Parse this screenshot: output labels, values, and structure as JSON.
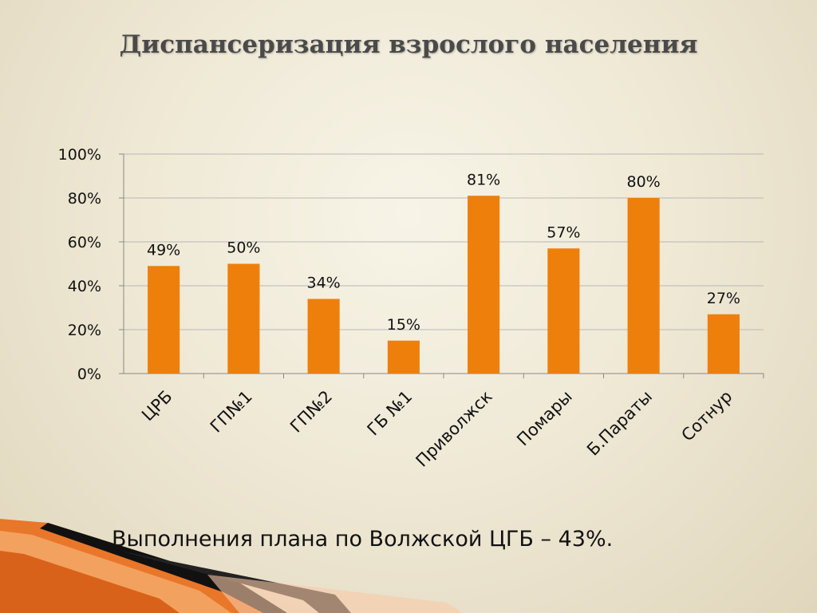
{
  "slide": {
    "title": "Диспансеризация взрослого населения",
    "footer": "Выполнения плана по Волжской ЦГБ – 43%."
  },
  "colors": {
    "bar": "#ee7f0b",
    "grid": "#b8b8b8",
    "text": "#111111"
  },
  "chart_data": {
    "type": "bar",
    "categories": [
      "ЦРБ",
      "ГП№1",
      "ГП№2",
      "ГБ №1",
      "Приволжск",
      "Помары",
      "Б.Параты",
      "Сотнур"
    ],
    "values": [
      49,
      50,
      34,
      15,
      81,
      57,
      80,
      27
    ],
    "data_labels": [
      "49%",
      "50%",
      "34%",
      "15%",
      "81%",
      "57%",
      "80%",
      "27%"
    ],
    "y_ticks": [
      "0%",
      "20%",
      "40%",
      "60%",
      "80%",
      "100%"
    ],
    "ylim": [
      0,
      100
    ],
    "ystep": 20,
    "grid": true,
    "legend": "none"
  }
}
